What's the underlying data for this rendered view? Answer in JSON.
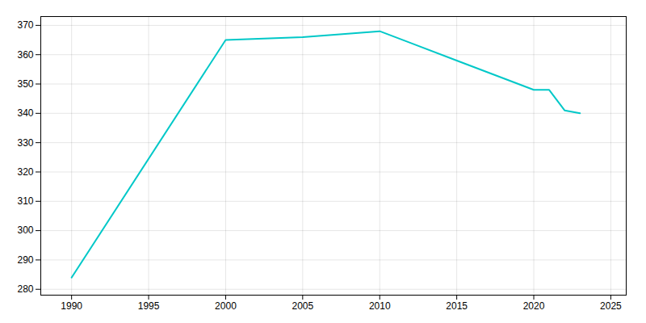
{
  "chart_data": {
    "type": "line",
    "x": [
      1990,
      2000,
      2005,
      2010,
      2015,
      2020,
      2021,
      2022,
      2023
    ],
    "values": [
      284,
      365,
      366,
      368,
      358,
      348,
      348,
      341,
      340
    ],
    "color": "#00C8C8",
    "xlim": [
      1988,
      2026
    ],
    "ylim": [
      278,
      373
    ],
    "xticks": [
      1990,
      1995,
      2000,
      2005,
      2010,
      2015,
      2020,
      2025
    ],
    "yticks": [
      280,
      290,
      300,
      310,
      320,
      330,
      340,
      350,
      360,
      370
    ],
    "grid": true
  }
}
